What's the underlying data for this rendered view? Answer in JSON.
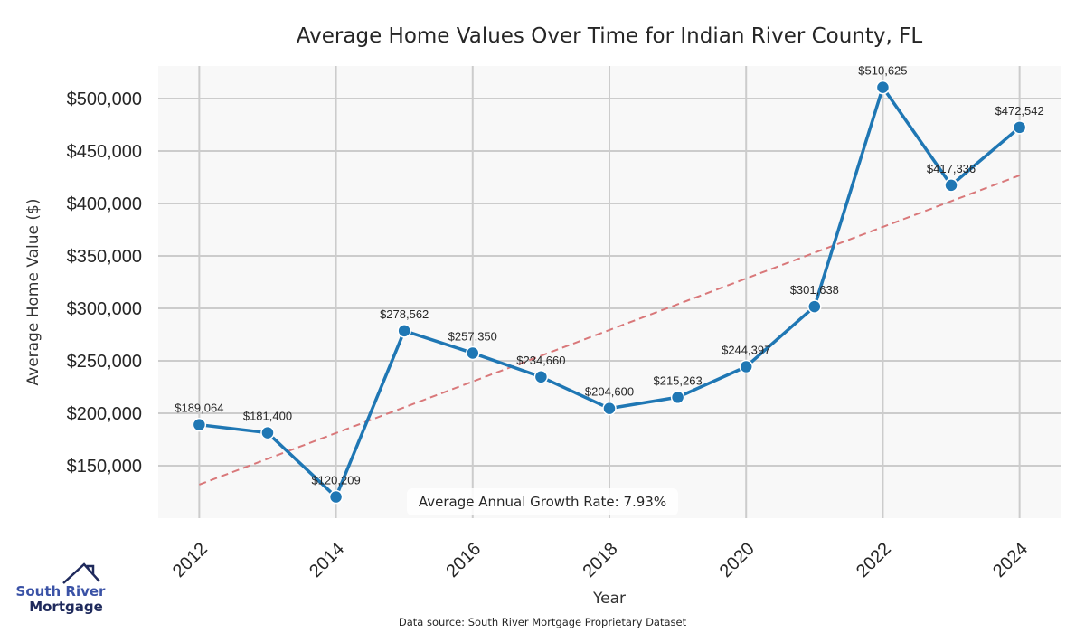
{
  "chart_data": {
    "type": "line",
    "title": "Average Home Values Over Time for Indian River County, FL",
    "xlabel": "Year",
    "ylabel": "Average Home Value ($)",
    "x": [
      2012,
      2013,
      2014,
      2015,
      2016,
      2017,
      2018,
      2019,
      2020,
      2021,
      2022,
      2023,
      2024
    ],
    "series": [
      {
        "name": "Average Home Value",
        "color": "#1f77b4",
        "values": [
          189064,
          181400,
          120209,
          278562,
          257350,
          234660,
          204600,
          215263,
          244397,
          301638,
          510625,
          417336,
          472542
        ],
        "labels": [
          "$189,064",
          "$181,400",
          "$120,209",
          "$278,562",
          "$257,350",
          "$234,660",
          "$204,600",
          "$215,263",
          "$244,397",
          "$301,638",
          "$510,625",
          "$417,336",
          "$472,542"
        ]
      }
    ],
    "trendline": {
      "name": "Linear trend",
      "color": "#d9787a",
      "style": "dashed",
      "start": {
        "x": 2012,
        "y": 132000
      },
      "end": {
        "x": 2024,
        "y": 426700
      }
    },
    "xticks": [
      2012,
      2014,
      2016,
      2018,
      2020,
      2022,
      2024
    ],
    "xtick_labels": [
      "2012",
      "2014",
      "2016",
      "2018",
      "2020",
      "2022",
      "2024"
    ],
    "yticks": [
      150000,
      200000,
      250000,
      300000,
      350000,
      400000,
      450000,
      500000
    ],
    "ytick_labels": [
      "$150,000",
      "$200,000",
      "$250,000",
      "$300,000",
      "$350,000",
      "$400,000",
      "$450,000",
      "$500,000"
    ],
    "xlim": [
      2011.4,
      2024.6
    ],
    "ylim": [
      100000,
      531000
    ],
    "grid": true,
    "annotation": "Average Annual Growth Rate: 7.93%",
    "source": "Data source: South River Mortgage Proprietary Dataset"
  },
  "logo": {
    "line1": "South River",
    "line2": "Mortgage"
  }
}
